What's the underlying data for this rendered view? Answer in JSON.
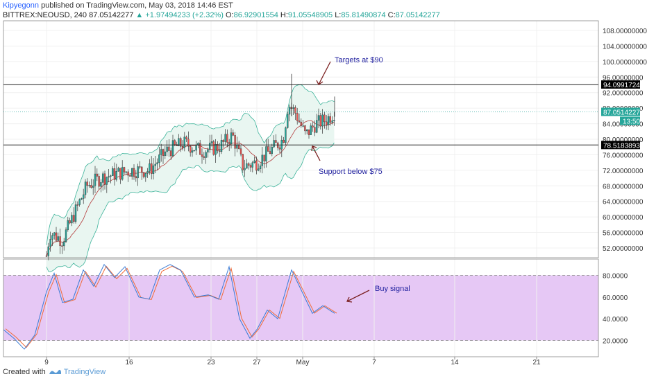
{
  "header": {
    "author": "Kipyegonn",
    "published": "published on TradingView.com, May 03, 2018 14:46 EST",
    "symbol": "BITTREX:NEOUSD, 240",
    "last": "87.05142277",
    "change": "+1.97494233 (+2.32%)",
    "o_label": "O:",
    "o_value": "86.92901554",
    "h_label": "H:",
    "h_value": "91.05548905",
    "l_label": "L:",
    "l_value": "85.81490874",
    "c_label": "C:",
    "c_value": "87.05142277"
  },
  "price_axis": {
    "labels": [
      "108.00000000",
      "104.00000000",
      "100.00000000",
      "96.00000000",
      "92.00000000",
      "88.00000000",
      "84.00000000",
      "80.00000000",
      "76.00000000",
      "72.00000000",
      "68.00000000",
      "64.00000000",
      "60.00000000",
      "56.00000000",
      "52.00000000"
    ],
    "values": [
      108,
      104,
      100,
      96,
      92,
      88,
      84,
      80,
      76,
      72,
      68,
      64,
      60,
      56,
      52
    ],
    "range": [
      49.5,
      110.5
    ]
  },
  "levels": {
    "resistance": {
      "value": 94.09917246,
      "label": "94.09917246"
    },
    "support": {
      "value": 78.51838935,
      "label": "78.51838935"
    },
    "last": {
      "value": 87.05142277,
      "label": "87.05142277",
      "countdown": "13:50"
    }
  },
  "annotations": {
    "targets": "Targets at $90",
    "support": "Support below $75",
    "buy": "Buy signal"
  },
  "stoch_axis": {
    "labels": [
      "80.0000",
      "60.0000",
      "40.0000",
      "20.0000"
    ],
    "values": [
      80,
      60,
      40,
      20
    ],
    "range": [
      5,
      95
    ]
  },
  "time_axis": {
    "labels": [
      "9",
      "16",
      "23",
      "27",
      "May",
      "7",
      "14",
      "21"
    ]
  },
  "footer": {
    "created": "Created with",
    "brand": "TradingView"
  },
  "colors": {
    "up": "#26a69a",
    "down": "#ef5350",
    "annotation": "#1e1e9e",
    "arrow": "#7a1f1f",
    "band": "#3cb39a",
    "stoch_fill": "#e6c8f5",
    "ma": "#b33a3a"
  }
}
